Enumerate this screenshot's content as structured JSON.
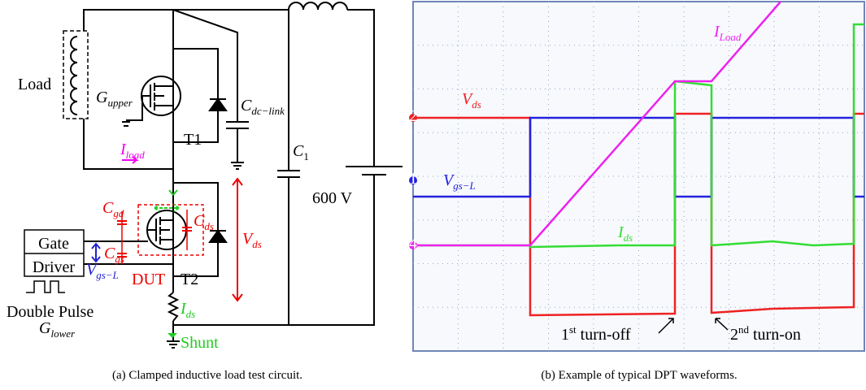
{
  "circuit": {
    "load": "Load",
    "g_upper": [
      "G",
      "upper"
    ],
    "c_dclink": [
      "C",
      "dc−link"
    ],
    "t1": "T1",
    "i_load": [
      "I",
      "load"
    ],
    "c1": [
      "C",
      "1"
    ],
    "source": "600 V",
    "c_gd": [
      "C",
      "gd"
    ],
    "c_ds": [
      "C",
      "ds"
    ],
    "c_gs": [
      "C",
      "gs"
    ],
    "v_ds": [
      "V",
      "ds"
    ],
    "gate_driver": [
      "Gate",
      "Driver"
    ],
    "v_gs": [
      "V",
      "gs−L"
    ],
    "dut": "DUT",
    "t2": "T2",
    "double_pulse": "Double Pulse",
    "g_lower": [
      "G",
      "lower"
    ],
    "i_ds": [
      "I",
      "ds"
    ],
    "shunt": "Shunt",
    "caption": "(a)  Clamped inductive load test circuit."
  },
  "scope": {
    "i_load": [
      "I",
      "Load"
    ],
    "v_ds": [
      "V",
      "ds"
    ],
    "v_gs": [
      "V",
      "gs−L"
    ],
    "i_ds": [
      "I",
      "ds"
    ],
    "ch_vds": "2",
    "ch_vgs": "1",
    "ch_iload": "4",
    "turn_off": [
      "1",
      "st",
      " turn-off"
    ],
    "turn_on": [
      "2",
      "nd",
      " turn-on"
    ],
    "caption": "(b)  Example of typical DPT waveforms."
  }
}
